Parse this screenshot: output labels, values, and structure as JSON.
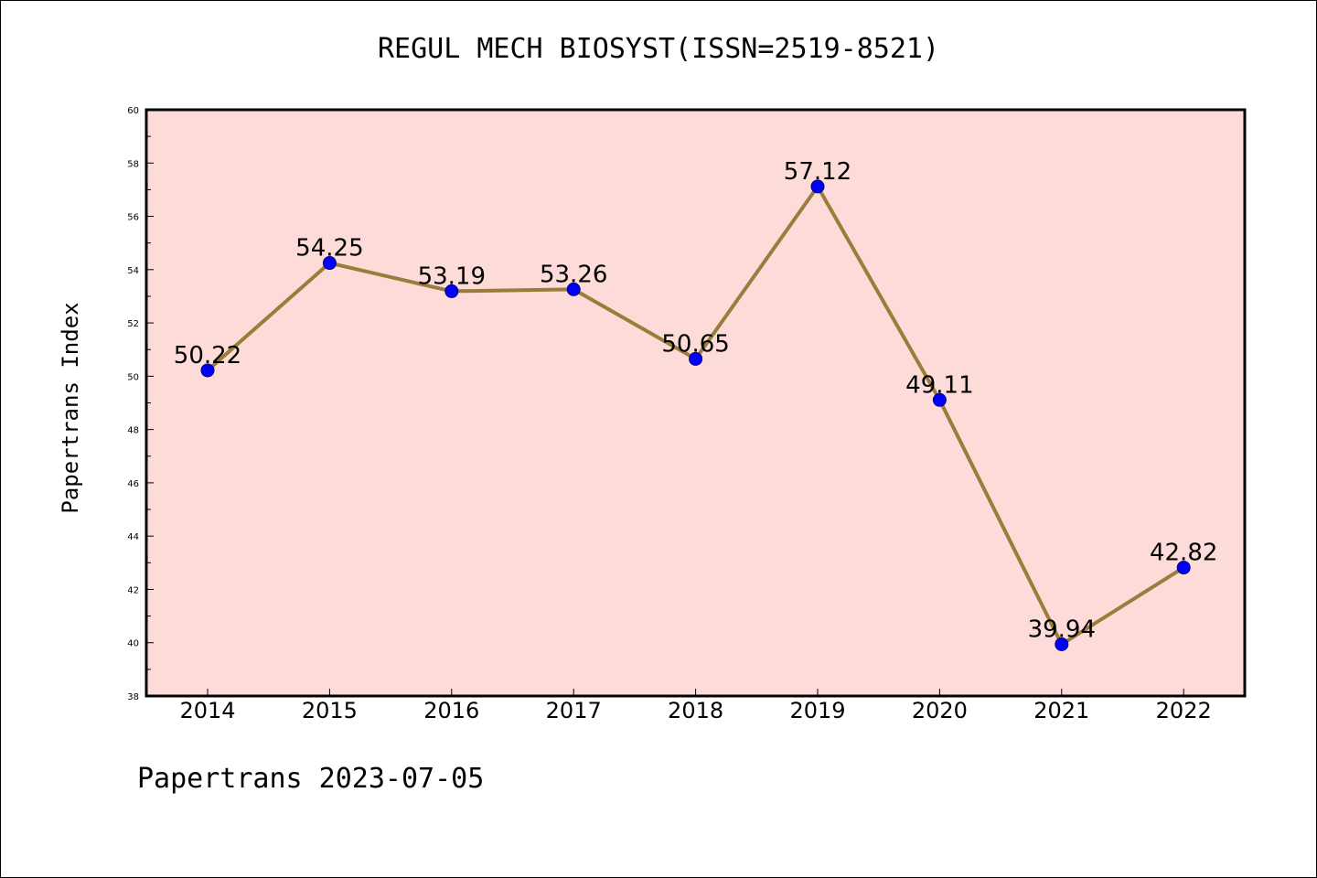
{
  "title": "REGUL MECH BIOSYST(ISSN=2519-8521)",
  "footer": "Papertrans 2023-07-05",
  "colors": {
    "plot_background": "#fddbd9",
    "line": "#9a7d3a",
    "marker": "#0000ff",
    "axis": "#000000"
  },
  "chart_data": {
    "type": "line",
    "title": "REGUL MECH BIOSYST(ISSN=2519-8521)",
    "xlabel": "",
    "ylabel": "Papertrans Index",
    "categories": [
      "2014",
      "2015",
      "2016",
      "2017",
      "2018",
      "2019",
      "2020",
      "2021",
      "2022"
    ],
    "series": [
      {
        "values": [
          50.22,
          54.25,
          53.19,
          53.26,
          50.65,
          57.12,
          49.11,
          39.94,
          42.82
        ],
        "labels": [
          "50.22",
          "54.25",
          "53.19",
          "53.26",
          "50.65",
          "57.12",
          "49.11",
          "39.94",
          "42.82"
        ]
      }
    ],
    "ylim": [
      38,
      60
    ],
    "yticks": [
      "38",
      "40",
      "42",
      "44",
      "46",
      "48",
      "50",
      "52",
      "54",
      "56",
      "58",
      "60"
    ],
    "grid": false,
    "legend": "none"
  }
}
